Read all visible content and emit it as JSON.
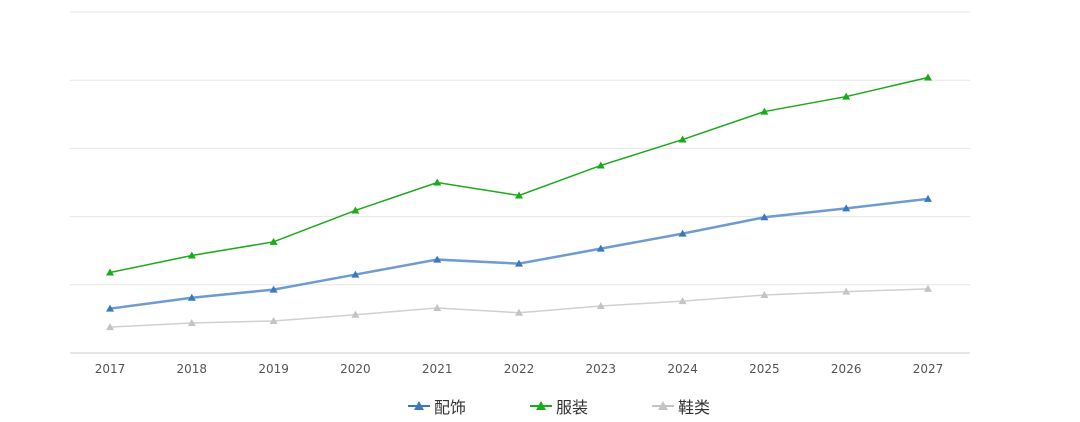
{
  "chart_data": {
    "type": "line",
    "title": "",
    "xlabel": "",
    "ylabel": "",
    "categories": [
      "2017",
      "2018",
      "2019",
      "2020",
      "2021",
      "2022",
      "2023",
      "2024",
      "2025",
      "2026",
      "2027"
    ],
    "ylim": [
      0,
      5
    ],
    "grid": true,
    "legend_position": "bottom",
    "series": [
      {
        "name": "配饰",
        "color": "#6f9bd1",
        "marker_color": "#3a78c2",
        "values": [
          0.65,
          0.81,
          0.93,
          1.15,
          1.37,
          1.31,
          1.53,
          1.75,
          1.99,
          2.12,
          2.26
        ]
      },
      {
        "name": "服装",
        "color": "#1aaa1a",
        "marker_color": "#1aaa1a",
        "values": [
          1.18,
          1.43,
          1.63,
          2.09,
          2.5,
          2.31,
          2.75,
          3.13,
          3.54,
          3.76,
          4.04
        ]
      },
      {
        "name": "鞋类",
        "color": "#d0d0d0",
        "marker_color": "#c4c4c4",
        "values": [
          0.38,
          0.44,
          0.47,
          0.56,
          0.66,
          0.59,
          0.69,
          0.76,
          0.85,
          0.9,
          0.94
        ]
      }
    ]
  }
}
